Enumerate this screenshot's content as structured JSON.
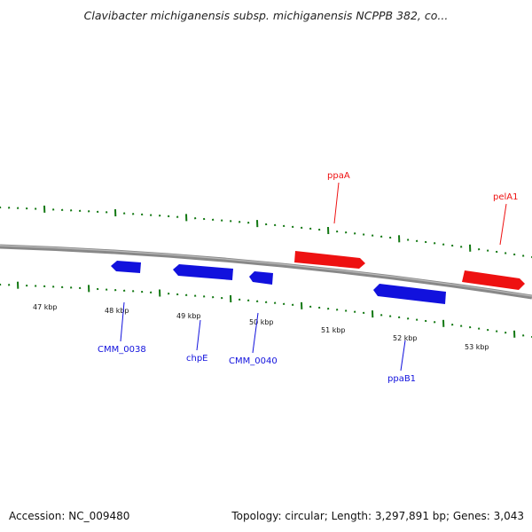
{
  "title": "Clavibacter michiganensis subsp. michiganensis NCPPB 382, co...",
  "footer": {
    "accession": "Accession: NC_009480",
    "summary": "Topology: circular; Length: 3,297,891 bp; Genes: 3,043"
  },
  "colors": {
    "forward_gene": "#ee1111",
    "reverse_gene": "#1111dd",
    "ticks": "#117711",
    "backbone": "#888888"
  },
  "scale_labels": [
    "47 kbp",
    "48 kbp",
    "49 kbp",
    "50 kbp",
    "51 kbp",
    "52 kbp",
    "53 kbp"
  ],
  "genes": [
    {
      "id": "g1",
      "strand": "reverse",
      "label": ""
    },
    {
      "id": "g2",
      "strand": "reverse",
      "label": ""
    },
    {
      "id": "g3",
      "strand": "reverse",
      "label": ""
    },
    {
      "id": "g4",
      "strand": "forward",
      "label": "ppaA"
    },
    {
      "id": "g5",
      "strand": "reverse",
      "label": "ppaB1"
    },
    {
      "id": "g6",
      "strand": "forward",
      "label": "pelA1"
    }
  ],
  "reverse_labels": [
    "CMM_0038",
    "chpE",
    "CMM_0040",
    "ppaB1"
  ],
  "forward_labels": [
    "ppaA",
    "pelA1"
  ]
}
